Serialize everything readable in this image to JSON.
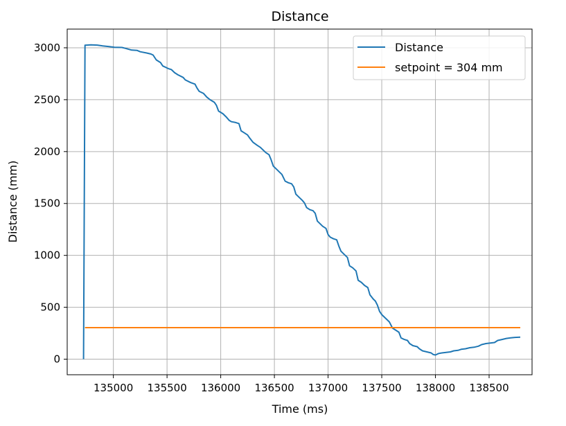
{
  "chart_data": {
    "type": "line",
    "title": "Distance",
    "xlabel": "Time (ms)",
    "ylabel": "Distance (mm)",
    "xlim": [
      134570,
      138900
    ],
    "ylim": [
      -150,
      3180
    ],
    "xticks": [
      135000,
      135500,
      136000,
      136500,
      137000,
      137500,
      138000,
      138500
    ],
    "yticks": [
      0,
      500,
      1000,
      1500,
      2000,
      2500,
      3000
    ],
    "grid": true,
    "legend_position": "top-right",
    "series": [
      {
        "name": "Distance",
        "color": "#1f77b4",
        "points": [
          [
            134722,
            0
          ],
          [
            134736,
            3025
          ],
          [
            134790,
            3028
          ],
          [
            134850,
            3026
          ],
          [
            134900,
            3018
          ],
          [
            134960,
            3012
          ],
          [
            135010,
            3005
          ],
          [
            135080,
            3003
          ],
          [
            135110,
            2995
          ],
          [
            135170,
            2978
          ],
          [
            135220,
            2975
          ],
          [
            135250,
            2962
          ],
          [
            135310,
            2950
          ],
          [
            135350,
            2940
          ],
          [
            135370,
            2930
          ],
          [
            135400,
            2883
          ],
          [
            135440,
            2857
          ],
          [
            135460,
            2825
          ],
          [
            135510,
            2800
          ],
          [
            135540,
            2790
          ],
          [
            135570,
            2760
          ],
          [
            135600,
            2740
          ],
          [
            135650,
            2714
          ],
          [
            135670,
            2690
          ],
          [
            135720,
            2665
          ],
          [
            135760,
            2650
          ],
          [
            135780,
            2611
          ],
          [
            135800,
            2580
          ],
          [
            135840,
            2560
          ],
          [
            135870,
            2525
          ],
          [
            135900,
            2500
          ],
          [
            135940,
            2475
          ],
          [
            135960,
            2445
          ],
          [
            135980,
            2390
          ],
          [
            136020,
            2365
          ],
          [
            136050,
            2335
          ],
          [
            136080,
            2300
          ],
          [
            136100,
            2288
          ],
          [
            136140,
            2280
          ],
          [
            136170,
            2270
          ],
          [
            136190,
            2200
          ],
          [
            136220,
            2180
          ],
          [
            136250,
            2160
          ],
          [
            136270,
            2130
          ],
          [
            136300,
            2090
          ],
          [
            136340,
            2060
          ],
          [
            136370,
            2040
          ],
          [
            136390,
            2020
          ],
          [
            136420,
            1990
          ],
          [
            136450,
            1970
          ],
          [
            136470,
            1920
          ],
          [
            136490,
            1860
          ],
          [
            136520,
            1830
          ],
          [
            136550,
            1800
          ],
          [
            136570,
            1780
          ],
          [
            136600,
            1715
          ],
          [
            136630,
            1700
          ],
          [
            136660,
            1690
          ],
          [
            136680,
            1660
          ],
          [
            136700,
            1590
          ],
          [
            136730,
            1560
          ],
          [
            136760,
            1530
          ],
          [
            136780,
            1505
          ],
          [
            136800,
            1460
          ],
          [
            136830,
            1440
          ],
          [
            136860,
            1430
          ],
          [
            136880,
            1405
          ],
          [
            136900,
            1330
          ],
          [
            136920,
            1310
          ],
          [
            136950,
            1280
          ],
          [
            136980,
            1260
          ],
          [
            137000,
            1200
          ],
          [
            137020,
            1175
          ],
          [
            137050,
            1160
          ],
          [
            137080,
            1150
          ],
          [
            137100,
            1090
          ],
          [
            137120,
            1040
          ],
          [
            137150,
            1010
          ],
          [
            137180,
            980
          ],
          [
            137200,
            900
          ],
          [
            137230,
            880
          ],
          [
            137260,
            850
          ],
          [
            137280,
            760
          ],
          [
            137310,
            740
          ],
          [
            137340,
            710
          ],
          [
            137370,
            690
          ],
          [
            137390,
            620
          ],
          [
            137420,
            580
          ],
          [
            137440,
            560
          ],
          [
            137460,
            520
          ],
          [
            137480,
            460
          ],
          [
            137500,
            430
          ],
          [
            137520,
            410
          ],
          [
            137550,
            380
          ],
          [
            137570,
            360
          ],
          [
            137600,
            300
          ],
          [
            137630,
            280
          ],
          [
            137660,
            260
          ],
          [
            137680,
            205
          ],
          [
            137710,
            190
          ],
          [
            137740,
            180
          ],
          [
            137760,
            150
          ],
          [
            137790,
            130
          ],
          [
            137830,
            120
          ],
          [
            137850,
            100
          ],
          [
            137880,
            80
          ],
          [
            137920,
            70
          ],
          [
            137960,
            60
          ],
          [
            137980,
            45
          ],
          [
            138000,
            40
          ],
          [
            138030,
            55
          ],
          [
            138060,
            60
          ],
          [
            138100,
            65
          ],
          [
            138140,
            70
          ],
          [
            138170,
            80
          ],
          [
            138210,
            85
          ],
          [
            138240,
            95
          ],
          [
            138280,
            100
          ],
          [
            138320,
            110
          ],
          [
            138360,
            115
          ],
          [
            138400,
            125
          ],
          [
            138430,
            140
          ],
          [
            138470,
            150
          ],
          [
            138510,
            155
          ],
          [
            138550,
            160
          ],
          [
            138580,
            180
          ],
          [
            138620,
            190
          ],
          [
            138660,
            200
          ],
          [
            138700,
            205
          ],
          [
            138740,
            210
          ],
          [
            138790,
            212
          ]
        ]
      },
      {
        "name": "setpoint = 304 mm",
        "color": "#ff7f0e",
        "points": [
          [
            134736,
            304
          ],
          [
            138790,
            304
          ]
        ]
      }
    ]
  }
}
